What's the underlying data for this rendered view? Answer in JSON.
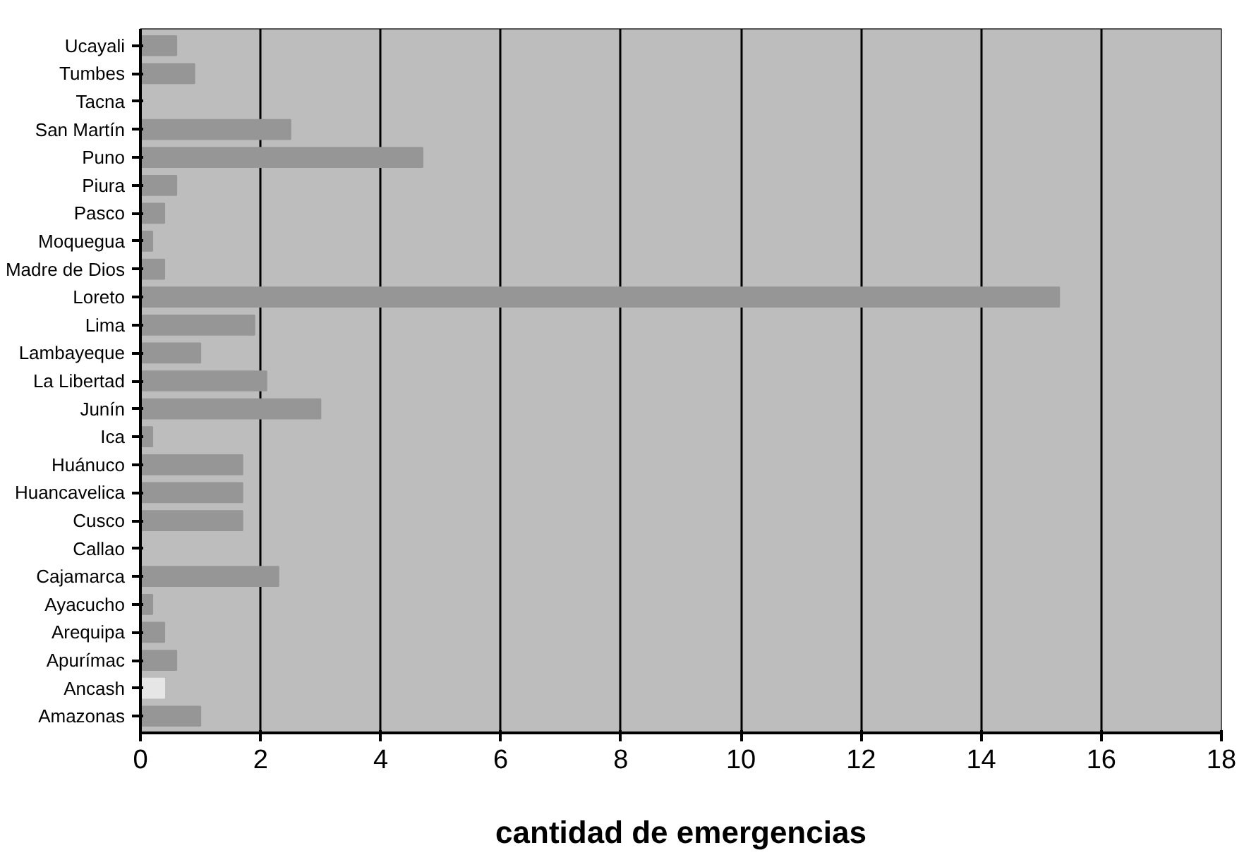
{
  "chart_data": {
    "type": "bar",
    "orientation": "horizontal",
    "xlabel": "cantidad de emergencias",
    "categories": [
      "Ucayali",
      "Tumbes",
      "Tacna",
      "San Martín",
      "Puno",
      "Piura",
      "Pasco",
      "Moquegua",
      "Madre de Dios",
      "Loreto",
      "Lima",
      "Lambayeque",
      "La Libertad",
      "Junín",
      "Ica",
      "Huánuco",
      "Huancavelica",
      "Cusco",
      "Callao",
      "Cajamarca",
      "Ayacucho",
      "Arequipa",
      "Apurímac",
      "Ancash",
      "Amazonas"
    ],
    "values": [
      0.6,
      0.9,
      0,
      2.5,
      4.7,
      0.6,
      0.4,
      0.2,
      0.4,
      15.3,
      1.9,
      1.0,
      2.1,
      3.0,
      0.2,
      1.7,
      1.7,
      1.7,
      0,
      2.3,
      0.2,
      0.4,
      0.6,
      0.4,
      1.0
    ],
    "colors": [
      "#969696",
      "#969696",
      "#969696",
      "#969696",
      "#969696",
      "#969696",
      "#969696",
      "#969696",
      "#969696",
      "#969696",
      "#969696",
      "#969696",
      "#969696",
      "#969696",
      "#969696",
      "#969696",
      "#969696",
      "#969696",
      "#969696",
      "#969696",
      "#969696",
      "#969696",
      "#969696",
      "#e6e6e6",
      "#969696"
    ],
    "xlim": [
      0,
      18
    ],
    "xticks": [
      0,
      2,
      4,
      6,
      8,
      10,
      12,
      14,
      16,
      18
    ],
    "grid": "x"
  }
}
